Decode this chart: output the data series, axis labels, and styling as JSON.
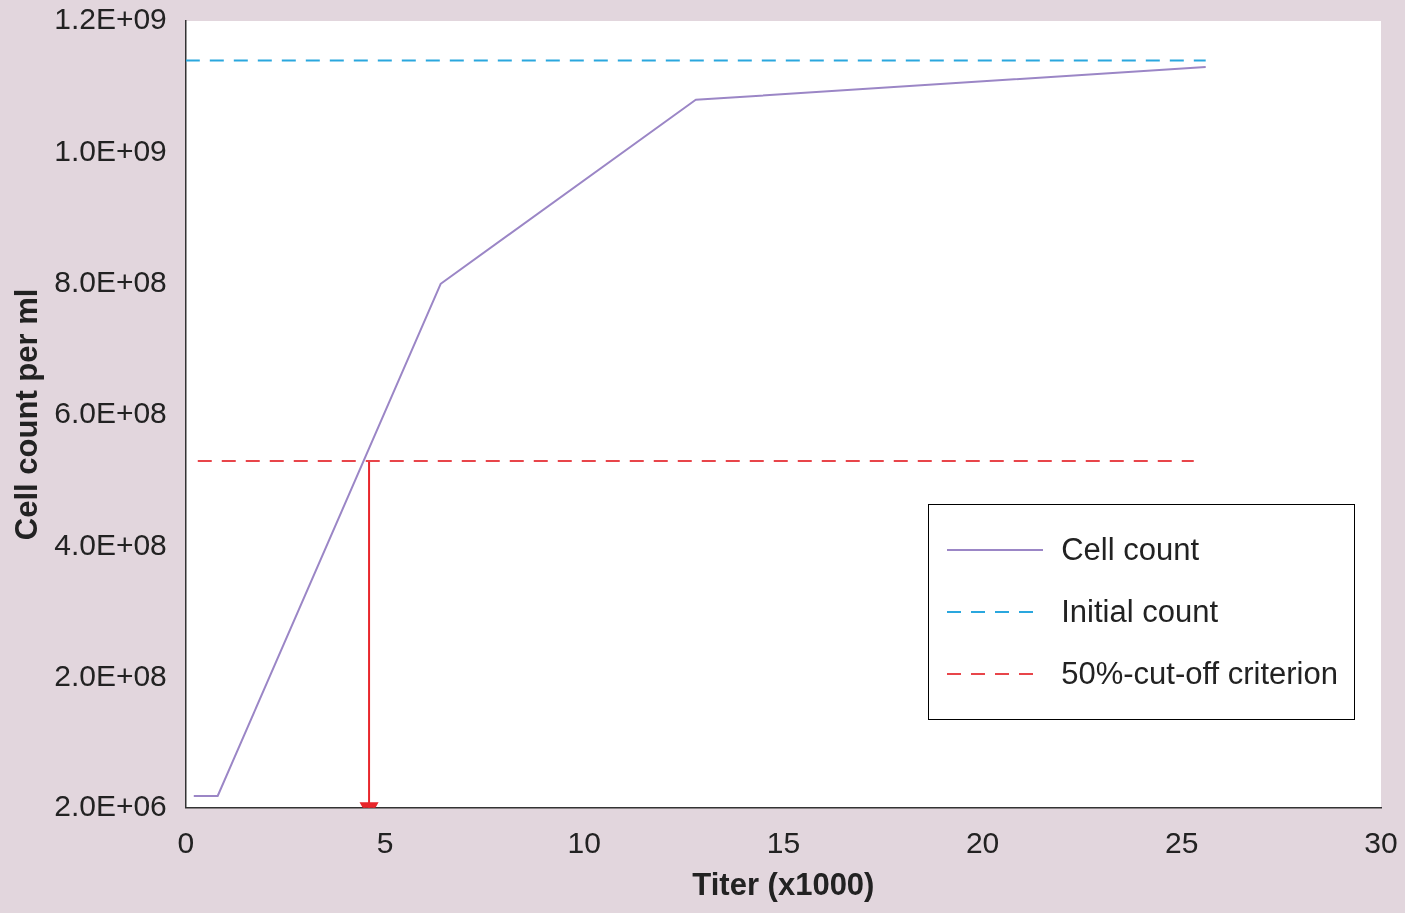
{
  "chart_data": {
    "type": "line",
    "xlabel": "Titer (x1000)",
    "ylabel": "Cell count per ml",
    "xlim": [
      0,
      30
    ],
    "xticks": [
      0,
      5,
      10,
      15,
      20,
      25,
      30
    ],
    "ylim": [
      2000000,
      1200000000
    ],
    "yticks": [
      {
        "value": 2000000,
        "label": "2.0E+06"
      },
      {
        "value": 200000000,
        "label": "2.0E+08"
      },
      {
        "value": 400000000,
        "label": "4.0E+08"
      },
      {
        "value": 600000000,
        "label": "6.0E+08"
      },
      {
        "value": 800000000,
        "label": "8.0E+08"
      },
      {
        "value": 1000000000,
        "label": "1.0E+09"
      },
      {
        "value": 1200000000,
        "label": "1.2E+09"
      }
    ],
    "grid": false,
    "legend": "bottom right",
    "marker": "none",
    "series": [
      {
        "name": "Cell count",
        "color": "#9b86c6",
        "line_style": "solid",
        "x": [
          0.2,
          0.8,
          6.4,
          12.8,
          25.6
        ],
        "values": [
          20000000,
          20000000,
          800000000,
          1080000000,
          1130000000
        ]
      },
      {
        "name": "Initial count",
        "color": "#2aa7de",
        "line_style": "dashed",
        "x": [
          0,
          25.6
        ],
        "values": [
          1140000000,
          1140000000
        ]
      },
      {
        "name": "50%-cut-off criterion",
        "color": "#e8454a",
        "line_style": "dashed",
        "x": [
          0.3,
          25.3
        ],
        "values": [
          530000000,
          530000000
        ]
      },
      {
        "color": "#e8262b",
        "line_style": "solid",
        "marker": "triangle",
        "x": [
          4.6,
          4.6
        ],
        "values": [
          530000000,
          2000000
        ]
      }
    ]
  }
}
